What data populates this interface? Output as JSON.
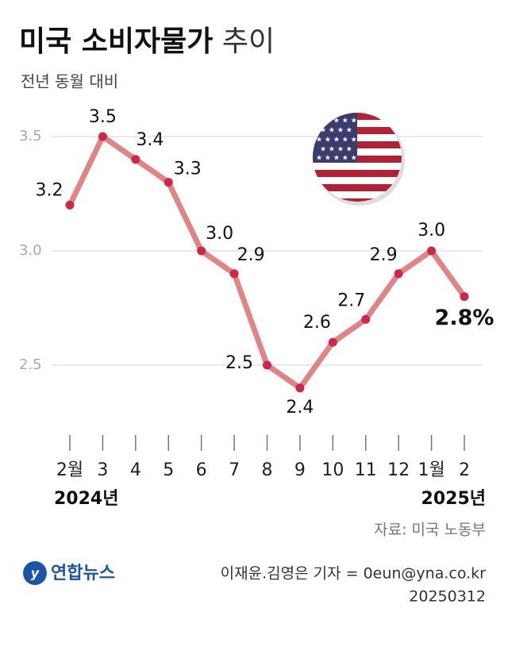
{
  "chart_data": {
    "type": "line",
    "title": [
      "미국 소비자물가",
      "추이"
    ],
    "subtitle": "전년 동월 대비",
    "categories": [
      "2월",
      "3",
      "4",
      "5",
      "6",
      "7",
      "8",
      "9",
      "10",
      "11",
      "12",
      "1월",
      "2"
    ],
    "year_labels": [
      "2024년",
      "2025년"
    ],
    "values": [
      3.2,
      3.5,
      3.4,
      3.3,
      3.0,
      2.9,
      2.5,
      2.4,
      2.6,
      2.7,
      2.9,
      3.0,
      2.8
    ],
    "value_labels": [
      "3.2",
      "3.5",
      "3.4",
      "3.3",
      "3.0",
      "2.9",
      "2.5",
      "2.4",
      "2.6",
      "2.7",
      "2.9",
      "3.0",
      "2.8%"
    ],
    "line_color": "#e08585",
    "marker_color": "#d0264a",
    "ylim": [
      2.25,
      3.75
    ],
    "yticks": [
      2.5,
      {
        "value": 3.0,
        "label": "3.0"
      },
      3.5
    ],
    "grid": true,
    "source": "자료: 미국 노동부",
    "logo": "연합뉴스",
    "credit": "이재윤.김영은 기자 = 0eun@yna.co.kr",
    "date": "20250312"
  }
}
